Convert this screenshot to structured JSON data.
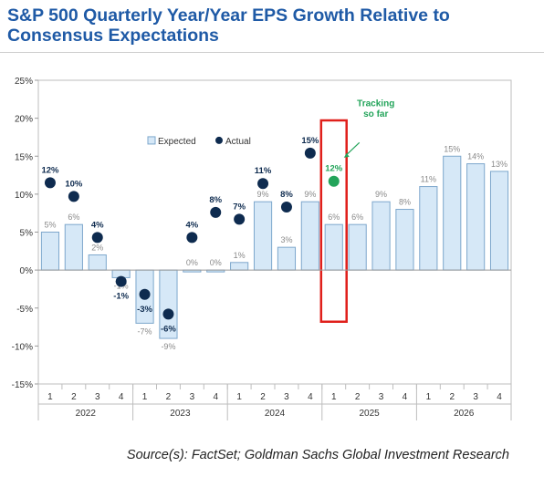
{
  "title": "S&P 500 Quarterly Year/Year EPS Growth Relative to Consensus Expectations",
  "source": "Source(s): FactSet; Goldman Sachs Global Investment Research",
  "colors": {
    "title": "#1f5aa6",
    "bar_fill": "#d6e8f7",
    "bar_stroke": "#7da7cc",
    "actual": "#0e2b4f",
    "tracking": "#23a45a",
    "highlight_box": "#e0201b",
    "expected_label": "#8a8a8a"
  },
  "chart_data": {
    "type": "bar",
    "categories": [
      "1",
      "2",
      "3",
      "4",
      "1",
      "2",
      "3",
      "4",
      "1",
      "2",
      "3",
      "4",
      "1",
      "2",
      "3",
      "4",
      "1",
      "2",
      "3",
      "4"
    ],
    "year_groups": [
      {
        "label": "2022",
        "quarters": 4
      },
      {
        "label": "2023",
        "quarters": 4
      },
      {
        "label": "2024",
        "quarters": 4
      },
      {
        "label": "2025",
        "quarters": 4
      },
      {
        "label": "2026",
        "quarters": 4
      }
    ],
    "series": [
      {
        "name": "Expected",
        "values": [
          5,
          6,
          2,
          -1,
          -7,
          -9,
          0,
          0,
          1,
          9,
          3,
          9,
          6,
          6,
          9,
          8,
          11,
          15,
          14,
          13
        ],
        "labels": [
          "5%",
          "6%",
          "2%",
          "-1%",
          "-7%",
          "-9%",
          "0%",
          "0%",
          "1%",
          "9%",
          "3%",
          "9%",
          "6%",
          "6%",
          "9%",
          "8%",
          "11%",
          "15%",
          "14%",
          "13%"
        ]
      },
      {
        "name": "Actual",
        "values": [
          11.5,
          9.7,
          4.3,
          -1.5,
          -3.2,
          -5.8,
          4.3,
          7.6,
          6.7,
          11.4,
          8.3,
          15.4,
          null,
          null,
          null,
          null,
          null,
          null,
          null,
          null
        ],
        "labels": [
          "12%",
          "10%",
          "4%",
          "-1%",
          "-3%",
          "-6%",
          "4%",
          "8%",
          "7%",
          "11%",
          "8%",
          "15%",
          "",
          "",
          "",
          "",
          "",
          "",
          "",
          ""
        ]
      }
    ],
    "tracking": {
      "index": 12,
      "value": 11.7,
      "label": "12%",
      "annotation": "Tracking so far"
    },
    "highlight_index": 12,
    "ylim": [
      -15,
      25
    ],
    "yticks": [
      "-15%",
      "-10%",
      "-5%",
      "0%",
      "5%",
      "10%",
      "15%",
      "20%",
      "25%"
    ],
    "ytick_values": [
      -15,
      -10,
      -5,
      0,
      5,
      10,
      15,
      20,
      25
    ],
    "legend": [
      "Expected",
      "Actual"
    ],
    "legend_position": "top-left"
  }
}
